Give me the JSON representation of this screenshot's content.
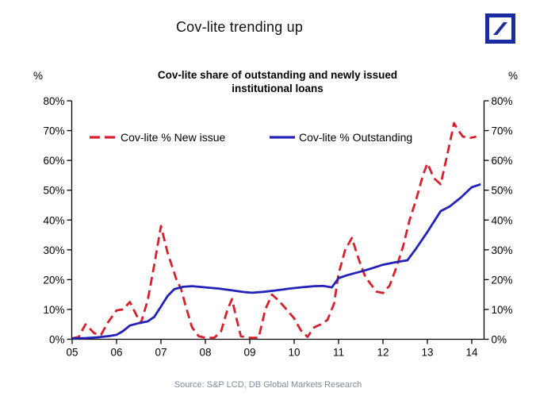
{
  "header": {
    "title": "Cov-lite trending up"
  },
  "logo": {
    "name": "deutsche-bank-logo"
  },
  "subtitle": {
    "line1": "Cov-lite share of outstanding and newly issued",
    "line2": "institutional loans"
  },
  "axes_units": {
    "left": "%",
    "right": "%"
  },
  "footer": {
    "source": "Source:  S&P LCD, DB Global Markets Research"
  },
  "colors": {
    "brand_navy": "#1b2c9e",
    "new_issue_red": "#d4212d",
    "outstanding_blue": "#2222bb",
    "axis_black": "#000000",
    "source_gray": "#7e8c98"
  },
  "chart_data": {
    "type": "line",
    "title": "Cov-lite share of outstanding and newly issued institutional loans",
    "ylabel": "%",
    "grid": false,
    "legend_position": "inside-top-left",
    "x_tick_labels": [
      "05",
      "06",
      "07",
      "08",
      "09",
      "10",
      "11",
      "12",
      "13",
      "14"
    ],
    "x_tick_years": [
      2005,
      2006,
      2007,
      2008,
      2009,
      2010,
      2011,
      2012,
      2013,
      2014
    ],
    "y_ticks": [
      0,
      10,
      20,
      30,
      40,
      50,
      60,
      70,
      80
    ],
    "y_tick_suffix": "%",
    "ylim": [
      0,
      80
    ],
    "xlim": [
      2005,
      2014.27
    ],
    "series": [
      {
        "name": "Cov-lite % New issue",
        "style": "dashed",
        "color_key": "new_issue_red",
        "points": [
          [
            2005.0,
            0.3
          ],
          [
            2005.15,
            0.8
          ],
          [
            2005.3,
            5
          ],
          [
            2005.5,
            2
          ],
          [
            2005.65,
            1.5
          ],
          [
            2005.8,
            5.5
          ],
          [
            2006.0,
            9.7
          ],
          [
            2006.15,
            10
          ],
          [
            2006.3,
            12.5
          ],
          [
            2006.45,
            8
          ],
          [
            2006.55,
            5.5
          ],
          [
            2006.7,
            13
          ],
          [
            2006.85,
            25
          ],
          [
            2007.0,
            38
          ],
          [
            2007.15,
            29
          ],
          [
            2007.35,
            20
          ],
          [
            2007.45,
            17
          ],
          [
            2007.55,
            11.5
          ],
          [
            2007.7,
            4
          ],
          [
            2007.85,
            1
          ],
          [
            2008.0,
            0.5
          ],
          [
            2008.2,
            0.5
          ],
          [
            2008.35,
            2.5
          ],
          [
            2008.5,
            10
          ],
          [
            2008.6,
            13.5
          ],
          [
            2008.7,
            7
          ],
          [
            2008.8,
            1
          ],
          [
            2009.0,
            0.5
          ],
          [
            2009.2,
            0.5
          ],
          [
            2009.35,
            10
          ],
          [
            2009.5,
            15
          ],
          [
            2009.65,
            13
          ],
          [
            2009.8,
            10.5
          ],
          [
            2010.0,
            7
          ],
          [
            2010.15,
            3
          ],
          [
            2010.3,
            0.8
          ],
          [
            2010.45,
            4
          ],
          [
            2010.6,
            5
          ],
          [
            2010.75,
            6.5
          ],
          [
            2010.9,
            12
          ],
          [
            2011.0,
            22
          ],
          [
            2011.15,
            30
          ],
          [
            2011.3,
            34
          ],
          [
            2011.45,
            27
          ],
          [
            2011.6,
            21
          ],
          [
            2011.85,
            16
          ],
          [
            2012.0,
            15.5
          ],
          [
            2012.15,
            18
          ],
          [
            2012.3,
            24
          ],
          [
            2012.45,
            31
          ],
          [
            2012.6,
            40
          ],
          [
            2012.75,
            47
          ],
          [
            2012.9,
            55
          ],
          [
            2013.0,
            59
          ],
          [
            2013.15,
            54
          ],
          [
            2013.3,
            52
          ],
          [
            2013.45,
            62
          ],
          [
            2013.6,
            72.5
          ],
          [
            2013.7,
            70
          ],
          [
            2013.8,
            68
          ],
          [
            2013.95,
            67.5
          ],
          [
            2014.1,
            68
          ]
        ]
      },
      {
        "name": "Cov-lite % Outstanding",
        "style": "solid",
        "color_key": "outstanding_blue",
        "points": [
          [
            2005.0,
            0.3
          ],
          [
            2005.3,
            0.4
          ],
          [
            2005.55,
            0.6
          ],
          [
            2005.8,
            1
          ],
          [
            2006.0,
            1.5
          ],
          [
            2006.15,
            2.8
          ],
          [
            2006.3,
            4.6
          ],
          [
            2006.5,
            5.4
          ],
          [
            2006.7,
            6
          ],
          [
            2006.85,
            7.5
          ],
          [
            2007.0,
            11
          ],
          [
            2007.15,
            14.5
          ],
          [
            2007.3,
            16.8
          ],
          [
            2007.5,
            17.6
          ],
          [
            2007.7,
            17.8
          ],
          [
            2008.0,
            17.4
          ],
          [
            2008.3,
            17
          ],
          [
            2008.6,
            16.4
          ],
          [
            2008.9,
            15.8
          ],
          [
            2009.05,
            15.6
          ],
          [
            2009.3,
            15.9
          ],
          [
            2009.6,
            16.4
          ],
          [
            2009.9,
            17
          ],
          [
            2010.15,
            17.4
          ],
          [
            2010.45,
            17.8
          ],
          [
            2010.65,
            17.9
          ],
          [
            2010.85,
            17.4
          ],
          [
            2011.0,
            20.5
          ],
          [
            2011.2,
            21.5
          ],
          [
            2011.5,
            22.7
          ],
          [
            2011.75,
            23.8
          ],
          [
            2012.0,
            25
          ],
          [
            2012.3,
            25.9
          ],
          [
            2012.55,
            26.5
          ],
          [
            2012.75,
            30.5
          ],
          [
            2013.0,
            36
          ],
          [
            2013.3,
            43
          ],
          [
            2013.5,
            44.5
          ],
          [
            2013.75,
            47.5
          ],
          [
            2014.0,
            51
          ],
          [
            2014.2,
            52
          ]
        ]
      }
    ]
  }
}
